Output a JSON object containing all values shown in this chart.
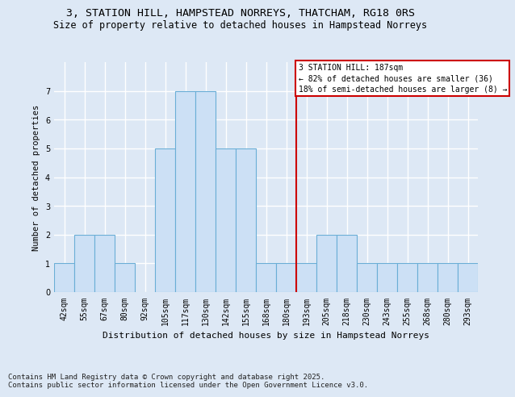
{
  "title": "3, STATION HILL, HAMPSTEAD NORREYS, THATCHAM, RG18 0RS",
  "subtitle": "Size of property relative to detached houses in Hampstead Norreys",
  "xlabel": "Distribution of detached houses by size in Hampstead Norreys",
  "ylabel": "Number of detached properties",
  "categories": [
    "42sqm",
    "55sqm",
    "67sqm",
    "80sqm",
    "92sqm",
    "105sqm",
    "117sqm",
    "130sqm",
    "142sqm",
    "155sqm",
    "168sqm",
    "180sqm",
    "193sqm",
    "205sqm",
    "218sqm",
    "230sqm",
    "243sqm",
    "255sqm",
    "268sqm",
    "280sqm",
    "293sqm"
  ],
  "values": [
    1,
    2,
    2,
    1,
    0,
    5,
    7,
    7,
    5,
    5,
    1,
    1,
    1,
    2,
    2,
    1,
    1,
    1,
    1,
    1,
    1
  ],
  "bar_color": "#cce0f5",
  "bar_edge_color": "#6aaed6",
  "highlight_line_index": 12,
  "highlight_text": "3 STATION HILL: 187sqm\n← 82% of detached houses are smaller (36)\n18% of semi-detached houses are larger (8) →",
  "ylim": [
    0,
    8
  ],
  "yticks": [
    0,
    1,
    2,
    3,
    4,
    5,
    6,
    7
  ],
  "footer": "Contains HM Land Registry data © Crown copyright and database right 2025.\nContains public sector information licensed under the Open Government Licence v3.0.",
  "bg_color": "#dde8f5",
  "plot_bg_color": "#dde8f5",
  "grid_color": "#ffffff",
  "title_fontsize": 9.5,
  "subtitle_fontsize": 8.5,
  "xlabel_fontsize": 8,
  "ylabel_fontsize": 7.5,
  "tick_fontsize": 7,
  "footer_fontsize": 6.5
}
